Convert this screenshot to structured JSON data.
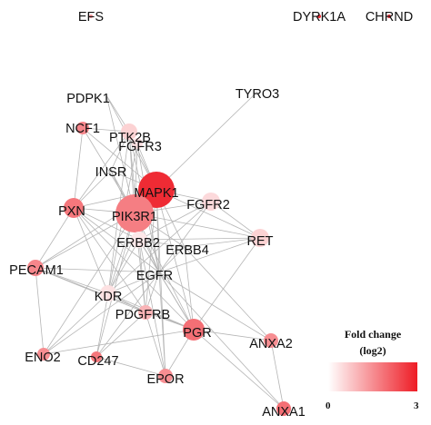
{
  "network": {
    "nodes": [
      {
        "id": "EFS",
        "label": "EFS",
        "fold_change": 1.4
      },
      {
        "id": "DYRK1A",
        "label": "DYRK1A",
        "fold_change": 2.8
      },
      {
        "id": "CHRND",
        "label": "CHRND",
        "fold_change": 2.8
      },
      {
        "id": "TYRO3",
        "label": "TYRO3",
        "fold_change": 0.0
      },
      {
        "id": "PDPK1",
        "label": "PDPK1",
        "fold_change": 0.0
      },
      {
        "id": "NCF1",
        "label": "NCF1",
        "fold_change": 1.6
      },
      {
        "id": "PTK2B",
        "label": "PTK2B",
        "fold_change": 0.6
      },
      {
        "id": "FGFR3",
        "label": "FGFR3",
        "fold_change": 0.4
      },
      {
        "id": "INSR",
        "label": "INSR",
        "fold_change": 0.0
      },
      {
        "id": "MAPK1",
        "label": "MAPK1",
        "fold_change": 2.8
      },
      {
        "id": "FGFR2",
        "label": "FGFR2",
        "fold_change": 0.5
      },
      {
        "id": "PXN",
        "label": "PXN",
        "fold_change": 1.8
      },
      {
        "id": "PIK3R1",
        "label": "PIK3R1",
        "fold_change": 1.7
      },
      {
        "id": "ERBB2",
        "label": "ERBB2",
        "fold_change": 0.3
      },
      {
        "id": "ERBB4",
        "label": "ERBB4",
        "fold_change": 0.0
      },
      {
        "id": "RET",
        "label": "RET",
        "fold_change": 0.6
      },
      {
        "id": "PECAM1",
        "label": "PECAM1",
        "fold_change": 1.6
      },
      {
        "id": "EGFR",
        "label": "EGFR",
        "fold_change": 0.0
      },
      {
        "id": "KDR",
        "label": "KDR",
        "fold_change": 0.4
      },
      {
        "id": "PDGFRB",
        "label": "PDGFRB",
        "fold_change": 1.0
      },
      {
        "id": "PGR",
        "label": "PGR",
        "fold_change": 1.9
      },
      {
        "id": "ANXA2",
        "label": "ANXA2",
        "fold_change": 1.5
      },
      {
        "id": "ENO2",
        "label": "ENO2",
        "fold_change": 1.5
      },
      {
        "id": "CD247",
        "label": "CD247",
        "fold_change": 1.8
      },
      {
        "id": "EPOR",
        "label": "EPOR",
        "fold_change": 1.5
      },
      {
        "id": "ANXA1",
        "label": "ANXA1",
        "fold_change": 1.9
      }
    ],
    "edges": [
      [
        "TYRO3",
        "MAPK1"
      ],
      [
        "PDPK1",
        "PIK3R1"
      ],
      [
        "PDPK1",
        "MAPK1"
      ],
      [
        "PDPK1",
        "PTK2B"
      ],
      [
        "NCF1",
        "PTK2B"
      ],
      [
        "NCF1",
        "PIK3R1"
      ],
      [
        "NCF1",
        "MAPK1"
      ],
      [
        "NCF1",
        "PXN"
      ],
      [
        "PTK2B",
        "PXN"
      ],
      [
        "PTK2B",
        "PIK3R1"
      ],
      [
        "PTK2B",
        "MAPK1"
      ],
      [
        "PTK2B",
        "EGFR"
      ],
      [
        "PTK2B",
        "ERBB2"
      ],
      [
        "PTK2B",
        "KDR"
      ],
      [
        "PTK2B",
        "INSR"
      ],
      [
        "FGFR3",
        "PIK3R1"
      ],
      [
        "FGFR3",
        "MAPK1"
      ],
      [
        "FGFR3",
        "EGFR"
      ],
      [
        "FGFR3",
        "KDR"
      ],
      [
        "INSR",
        "PIK3R1"
      ],
      [
        "INSR",
        "MAPK1"
      ],
      [
        "INSR",
        "PXN"
      ],
      [
        "INSR",
        "EGFR"
      ],
      [
        "MAPK1",
        "PIK3R1"
      ],
      [
        "MAPK1",
        "PXN"
      ],
      [
        "MAPK1",
        "FGFR2"
      ],
      [
        "MAPK1",
        "ERBB2"
      ],
      [
        "MAPK1",
        "ERBB4"
      ],
      [
        "MAPK1",
        "EGFR"
      ],
      [
        "MAPK1",
        "KDR"
      ],
      [
        "MAPK1",
        "PDGFRB"
      ],
      [
        "MAPK1",
        "PGR"
      ],
      [
        "MAPK1",
        "RET"
      ],
      [
        "MAPK1",
        "PECAM1"
      ],
      [
        "MAPK1",
        "EPOR"
      ],
      [
        "PIK3R1",
        "PXN"
      ],
      [
        "PIK3R1",
        "FGFR2"
      ],
      [
        "PIK3R1",
        "ERBB2"
      ],
      [
        "PIK3R1",
        "ERBB4"
      ],
      [
        "PIK3R1",
        "EGFR"
      ],
      [
        "PIK3R1",
        "KDR"
      ],
      [
        "PIK3R1",
        "PDGFRB"
      ],
      [
        "PIK3R1",
        "PGR"
      ],
      [
        "PIK3R1",
        "RET"
      ],
      [
        "PIK3R1",
        "PECAM1"
      ],
      [
        "PIK3R1",
        "CD247"
      ],
      [
        "PIK3R1",
        "EPOR"
      ],
      [
        "PIK3R1",
        "ENO2"
      ],
      [
        "PXN",
        "EGFR"
      ],
      [
        "PXN",
        "KDR"
      ],
      [
        "PXN",
        "ERBB2"
      ],
      [
        "PXN",
        "PECAM1"
      ],
      [
        "PXN",
        "PDGFRB"
      ],
      [
        "PXN",
        "PGR"
      ],
      [
        "FGFR2",
        "EGFR"
      ],
      [
        "FGFR2",
        "ERBB2"
      ],
      [
        "FGFR2",
        "RET"
      ],
      [
        "FGFR2",
        "KDR"
      ],
      [
        "ERBB2",
        "EGFR"
      ],
      [
        "ERBB2",
        "ERBB4"
      ],
      [
        "ERBB2",
        "KDR"
      ],
      [
        "ERBB2",
        "PDGFRB"
      ],
      [
        "ERBB2",
        "PGR"
      ],
      [
        "ERBB2",
        "RET"
      ],
      [
        "ERBB4",
        "EGFR"
      ],
      [
        "ERBB4",
        "PGR"
      ],
      [
        "ERBB4",
        "RET"
      ],
      [
        "ERBB4",
        "ANXA2"
      ],
      [
        "RET",
        "EGFR"
      ],
      [
        "RET",
        "PGR"
      ],
      [
        "PECAM1",
        "EGFR"
      ],
      [
        "PECAM1",
        "KDR"
      ],
      [
        "PECAM1",
        "PDGFRB"
      ],
      [
        "PECAM1",
        "ENO2"
      ],
      [
        "PECAM1",
        "PGR"
      ],
      [
        "EGFR",
        "KDR"
      ],
      [
        "EGFR",
        "PDGFRB"
      ],
      [
        "EGFR",
        "PGR"
      ],
      [
        "EGFR",
        "ANXA2"
      ],
      [
        "EGFR",
        "CD247"
      ],
      [
        "EGFR",
        "EPOR"
      ],
      [
        "EGFR",
        "ANXA1"
      ],
      [
        "EGFR",
        "ENO2"
      ],
      [
        "KDR",
        "PDGFRB"
      ],
      [
        "KDR",
        "PGR"
      ],
      [
        "KDR",
        "ENO2"
      ],
      [
        "KDR",
        "CD247"
      ],
      [
        "PDGFRB",
        "PGR"
      ],
      [
        "PDGFRB",
        "EPOR"
      ],
      [
        "PDGFRB",
        "CD247"
      ],
      [
        "PGR",
        "ANXA1"
      ],
      [
        "PGR",
        "EPOR"
      ],
      [
        "PGR",
        "ANXA2"
      ],
      [
        "ANXA2",
        "ANXA1"
      ],
      [
        "EPOR",
        "CD247"
      ],
      [
        "ENO2",
        "PGR"
      ]
    ]
  },
  "legend": {
    "title_line1": "Fold change",
    "title_line2": "(log2)",
    "min_label": "0",
    "max_label": "3",
    "min_value": 0,
    "max_value": 3,
    "color_low": "#ffffff",
    "color_high": "#ee1c25"
  },
  "colors": {
    "edge": "#b5b5b5",
    "label": "#111111"
  }
}
